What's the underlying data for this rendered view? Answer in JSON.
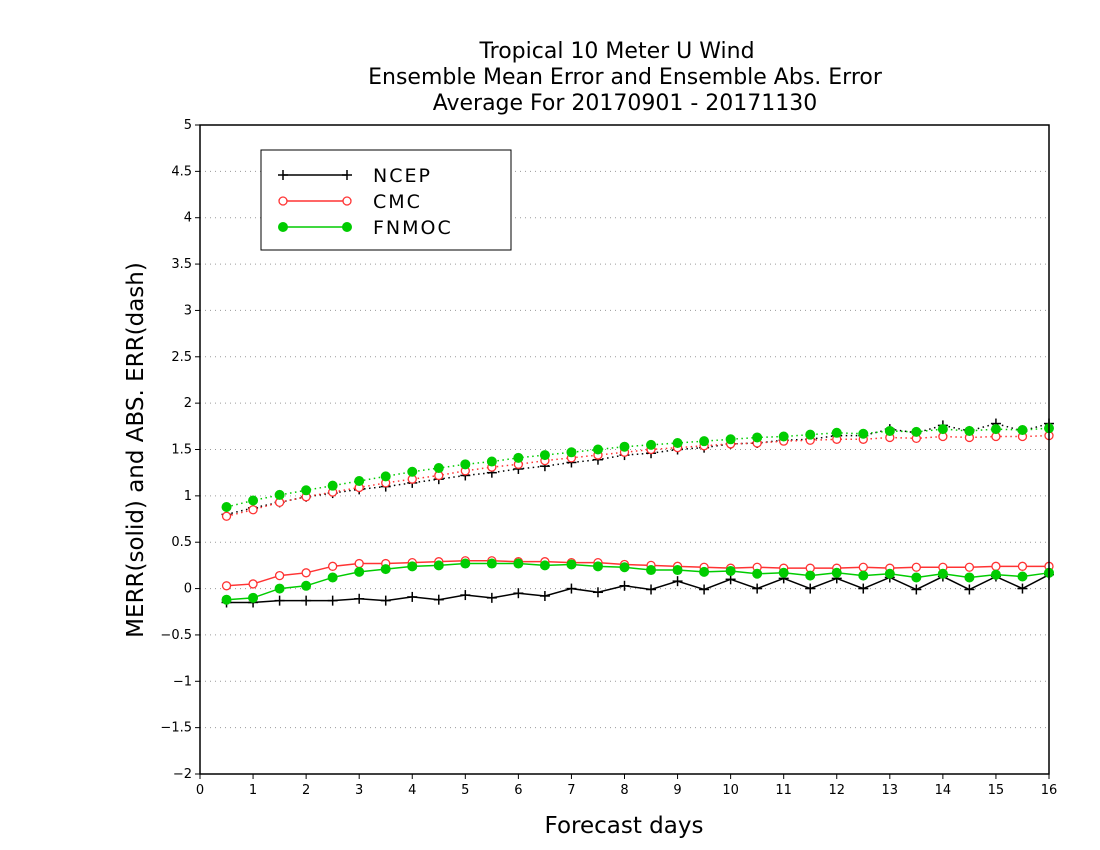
{
  "chart_data": {
    "type": "line",
    "title": [
      "Tropical 10 Meter U Wind",
      "Ensemble Mean Error and Ensemble Abs. Error",
      "Average For 20170901 - 20171130"
    ],
    "xlabel": "Forecast days",
    "ylabel": "MERR(solid) and ABS. ERR(dash)",
    "xlim": [
      0,
      16
    ],
    "ylim": [
      -2,
      5
    ],
    "xticks": [
      "0",
      "1",
      "2",
      "3",
      "4",
      "5",
      "6",
      "7",
      "8",
      "9",
      "10",
      "11",
      "12",
      "13",
      "14",
      "15",
      "16"
    ],
    "yticks": [
      "5",
      "4.5",
      "4",
      "3.5",
      "3",
      "2.5",
      "2",
      "1.5",
      "1",
      "0.5",
      "0",
      "−0.5",
      "−1",
      "−1.5",
      "−2"
    ],
    "grid": "horizontal dotted",
    "legend_position": "top-left",
    "x": [
      0.5,
      1,
      1.5,
      2,
      2.5,
      3,
      3.5,
      4,
      4.5,
      5,
      5.5,
      6,
      6.5,
      7,
      7.5,
      8,
      8.5,
      9,
      9.5,
      10,
      10.5,
      11,
      11.5,
      12,
      12.5,
      13,
      13.5,
      14,
      14.5,
      15,
      15.5,
      16
    ],
    "series": [
      {
        "name": "NCEP",
        "color": "#000000",
        "marker": "plus",
        "merr": [
          -0.15,
          -0.15,
          -0.13,
          -0.13,
          -0.13,
          -0.11,
          -0.13,
          -0.09,
          -0.12,
          -0.07,
          -0.1,
          -0.05,
          -0.08,
          0.0,
          -0.04,
          0.03,
          -0.01,
          0.08,
          -0.01,
          0.1,
          0.0,
          0.11,
          0.0,
          0.11,
          0.0,
          0.12,
          -0.01,
          0.13,
          -0.01,
          0.13,
          0.0,
          0.15
        ],
        "abs_err": [
          0.8,
          0.87,
          0.93,
          0.99,
          1.03,
          1.07,
          1.1,
          1.14,
          1.18,
          1.22,
          1.25,
          1.29,
          1.32,
          1.36,
          1.39,
          1.44,
          1.46,
          1.5,
          1.52,
          1.56,
          1.57,
          1.6,
          1.61,
          1.65,
          1.65,
          1.72,
          1.68,
          1.76,
          1.7,
          1.78,
          1.7,
          1.78
        ]
      },
      {
        "name": "CMC",
        "color": "#ff3333",
        "marker": "open-circle",
        "merr": [
          0.03,
          0.05,
          0.14,
          0.17,
          0.24,
          0.27,
          0.27,
          0.28,
          0.29,
          0.3,
          0.3,
          0.29,
          0.29,
          0.28,
          0.28,
          0.26,
          0.25,
          0.24,
          0.23,
          0.22,
          0.23,
          0.22,
          0.22,
          0.22,
          0.23,
          0.22,
          0.23,
          0.23,
          0.23,
          0.24,
          0.24,
          0.24
        ],
        "abs_err": [
          0.78,
          0.85,
          0.93,
          0.99,
          1.04,
          1.09,
          1.14,
          1.18,
          1.22,
          1.27,
          1.31,
          1.34,
          1.38,
          1.41,
          1.44,
          1.47,
          1.5,
          1.52,
          1.54,
          1.56,
          1.57,
          1.59,
          1.6,
          1.61,
          1.61,
          1.63,
          1.62,
          1.64,
          1.63,
          1.64,
          1.64,
          1.65
        ]
      },
      {
        "name": "FNMOC",
        "color": "#00cc00",
        "marker": "filled-circle",
        "merr": [
          -0.12,
          -0.1,
          0.0,
          0.03,
          0.12,
          0.18,
          0.21,
          0.24,
          0.25,
          0.27,
          0.27,
          0.27,
          0.25,
          0.26,
          0.24,
          0.23,
          0.2,
          0.2,
          0.18,
          0.19,
          0.16,
          0.17,
          0.14,
          0.17,
          0.14,
          0.16,
          0.12,
          0.16,
          0.12,
          0.15,
          0.13,
          0.17
        ],
        "abs_err": [
          0.88,
          0.95,
          1.01,
          1.06,
          1.11,
          1.16,
          1.21,
          1.26,
          1.3,
          1.34,
          1.37,
          1.41,
          1.44,
          1.47,
          1.5,
          1.53,
          1.55,
          1.57,
          1.59,
          1.61,
          1.63,
          1.64,
          1.66,
          1.68,
          1.67,
          1.7,
          1.69,
          1.72,
          1.7,
          1.72,
          1.71,
          1.73
        ]
      }
    ]
  }
}
